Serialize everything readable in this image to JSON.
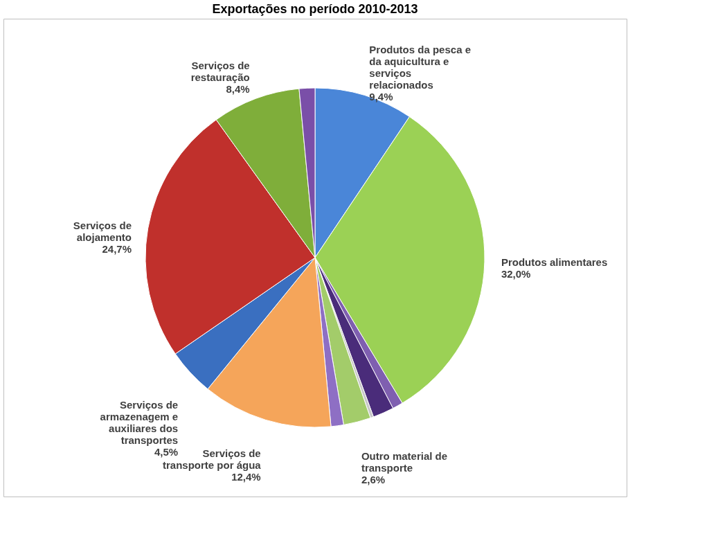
{
  "chart_data": {
    "type": "pie",
    "title": "Exportações no período 2010-2013",
    "categories": [
      "Produtos da pesca e da aquicultura e serviços relacionados",
      "Produtos alimentares",
      null,
      null,
      null,
      "Outro material de transporte",
      null,
      "Serviços de transporte por água",
      "Serviços de armazenagem e auxiliares dos transportes",
      "Serviços de alojamento",
      "Serviços de restauração",
      null
    ],
    "values": [
      9.4,
      32.0,
      1.0,
      2.0,
      0.3,
      2.6,
      1.2,
      12.4,
      4.5,
      24.7,
      8.4,
      1.5
    ],
    "value_labels": [
      "9,4%",
      "32,0%",
      null,
      null,
      null,
      "2,6%",
      null,
      "12,4%",
      "4,5%",
      "24,7%",
      "8,4%",
      null
    ],
    "colors": [
      "#4a86d8",
      "#9bd155",
      "#7f5fb0",
      "#4a2c7a",
      "#c8c8c8",
      "#a3cc6a",
      "#8e6fc4",
      "#f5a55a",
      "#3a6fc0",
      "#c0302c",
      "#7fae3a",
      "#7a4fa8"
    ],
    "legend": false
  }
}
